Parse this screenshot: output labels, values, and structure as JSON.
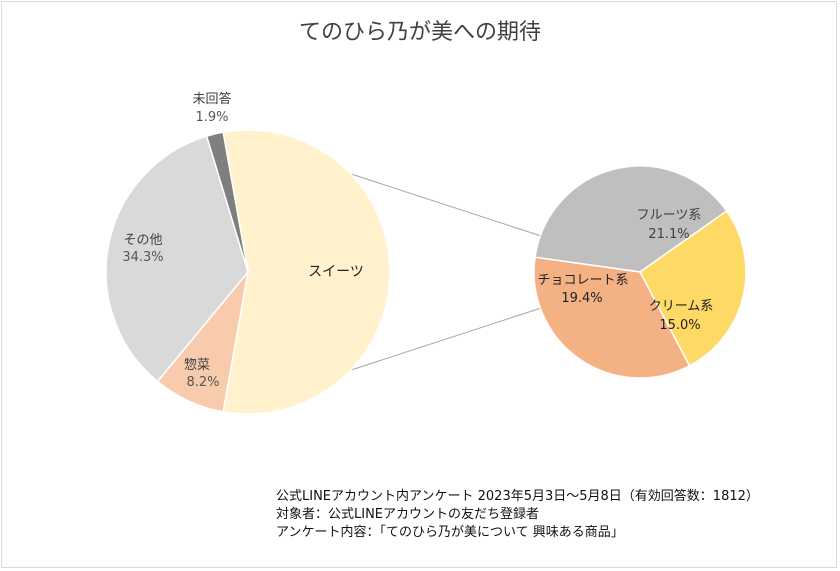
{
  "title": "てのひら乃が美への期待",
  "colors": {
    "sweets": "#fff2cc",
    "souzai": "#f8cbad",
    "other": "#d9d9d9",
    "noanswer": "#7f7f7f",
    "fruit": "#bfbfbf",
    "chocolate": "#f4b183",
    "cream": "#ffd966",
    "connector": "#a6a6a6"
  },
  "chart_data": [
    {
      "type": "pie",
      "name": "main",
      "slices": [
        {
          "key": "sweets",
          "label": "スイーツ",
          "value": 55.6,
          "value_label": ""
        },
        {
          "key": "souzai",
          "label": "惣菜",
          "value": 8.2,
          "value_label": "8.2%"
        },
        {
          "key": "other",
          "label": "その他",
          "value": 34.3,
          "value_label": "34.3%"
        },
        {
          "key": "noanswer",
          "label": "未回答",
          "value": 1.9,
          "value_label": "1.9%"
        }
      ]
    },
    {
      "type": "pie",
      "name": "sweets-breakdown",
      "slices": [
        {
          "key": "fruit",
          "label": "フルーツ系",
          "value": 21.1,
          "value_label": "21.1%"
        },
        {
          "key": "cream",
          "label": "クリーム系",
          "value": 15.0,
          "value_label": "15.0%"
        },
        {
          "key": "chocolate",
          "label": "チョコレート系",
          "value": 19.4,
          "value_label": "19.4%"
        }
      ]
    }
  ],
  "footnote": {
    "line1": "公式LINEアカウント内アンケート  2023年5月3日～5月8日（有効回答数：1812）",
    "line2": "対象者：公式LINEアカウントの友だち登録者",
    "line3": "アンケート内容：「てのひら乃が美について  興味ある商品」"
  }
}
